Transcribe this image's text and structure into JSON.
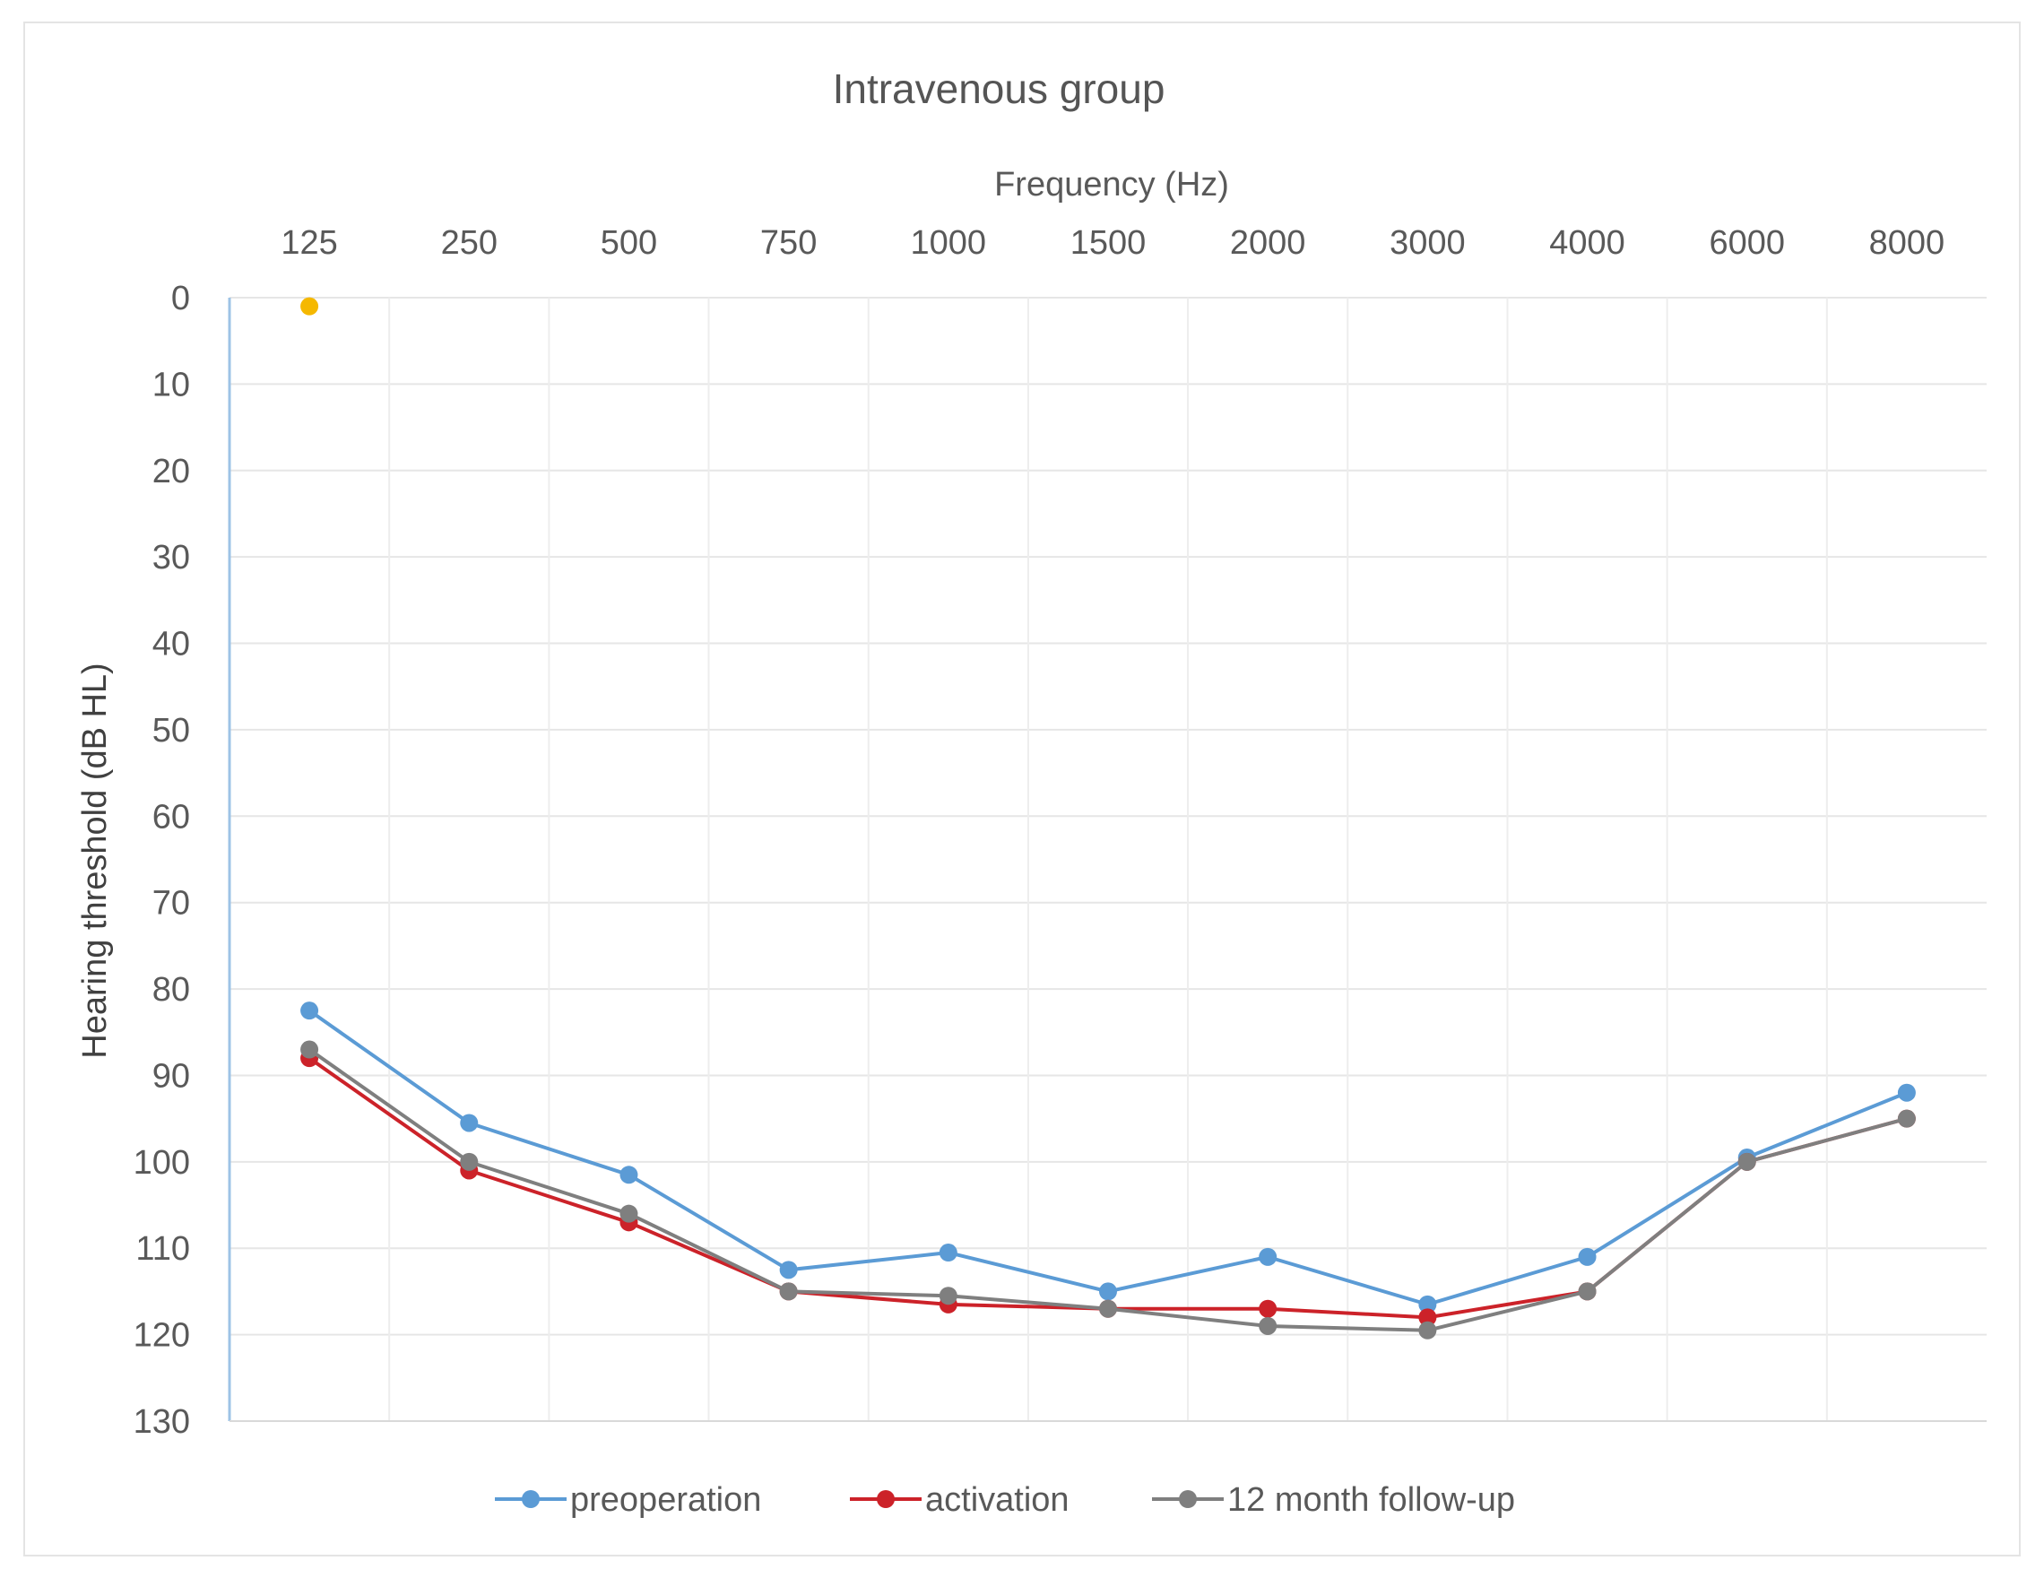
{
  "chart_data": {
    "type": "line",
    "title": "Intravenous group",
    "xlabel": "Frequency (Hz)",
    "ylabel": "Hearing threshold (dB HL)",
    "x_axis_position": "top",
    "y_axis_reversed": true,
    "categories": [
      "125",
      "250",
      "500",
      "750",
      "1000",
      "1500",
      "2000",
      "3000",
      "4000",
      "6000",
      "8000"
    ],
    "yticks": [
      "0",
      "10",
      "20",
      "30",
      "40",
      "50",
      "60",
      "70",
      "80",
      "90",
      "100",
      "110",
      "120",
      "130"
    ],
    "ylim": [
      0,
      130
    ],
    "grid": true,
    "legend": "bottom",
    "series": [
      {
        "name": "preoperation",
        "color": "#5b9bd5",
        "values": [
          82.5,
          95.5,
          101.5,
          112.5,
          110.5,
          115,
          111,
          116.5,
          111,
          99.5,
          92
        ]
      },
      {
        "name": "activation",
        "color": "#cc2229",
        "values": [
          88,
          101,
          107,
          115,
          116.5,
          117,
          117,
          118,
          115,
          100,
          95
        ]
      },
      {
        "name": "12 month follow-up",
        "color": "#7f7f7f",
        "values": [
          87,
          100,
          106,
          115,
          115.5,
          117,
          119,
          119.5,
          115,
          100,
          95
        ]
      }
    ],
    "extra_points": [
      {
        "x": "125",
        "y": 1,
        "color": "#f5b800"
      }
    ]
  }
}
